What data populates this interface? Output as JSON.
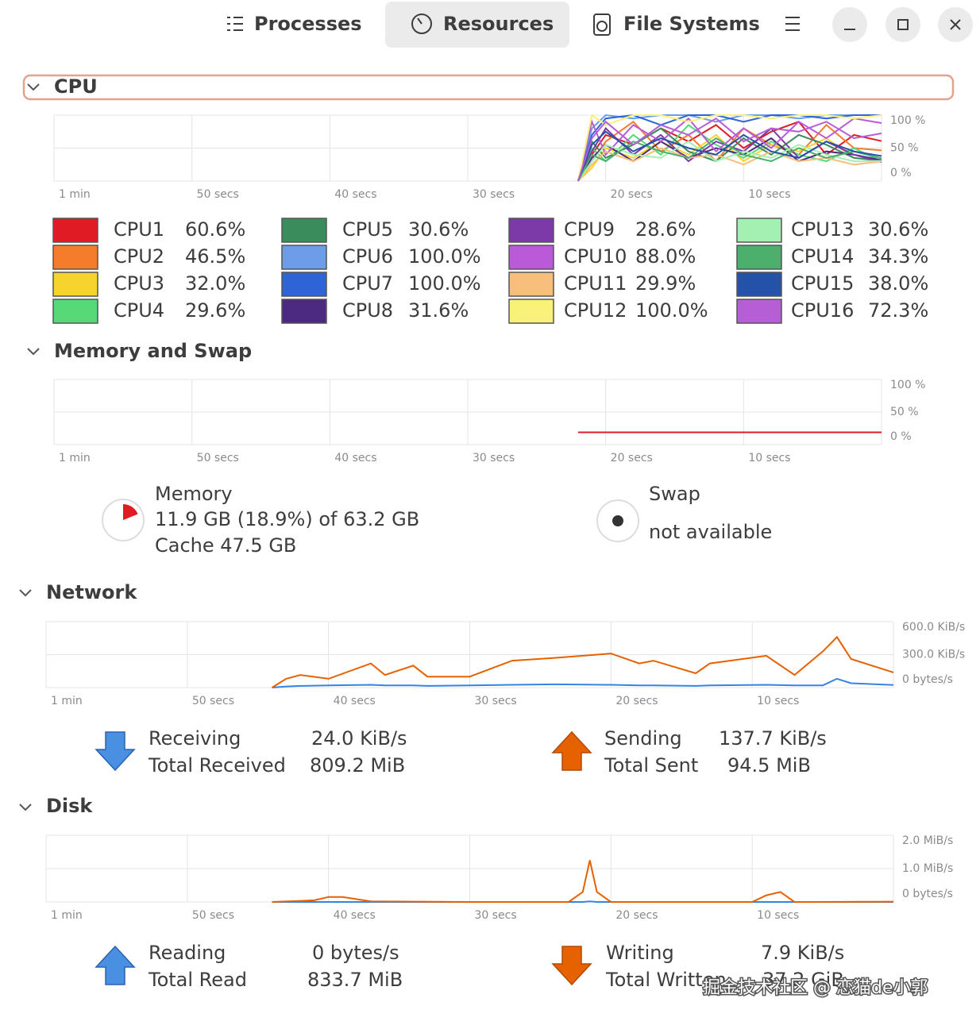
{
  "header": {
    "tabs": [
      "Processes",
      "Resources",
      "File Systems"
    ],
    "active_tab": 1
  },
  "cpu": {
    "title": "CPU",
    "graph": {
      "x": [
        22,
        21,
        20,
        18,
        16,
        14,
        12,
        10,
        8,
        6,
        4,
        2,
        0
      ],
      "xlim": [
        60,
        0
      ],
      "xticks": [
        {
          "value": 60,
          "label": "1 min"
        },
        {
          "value": 50,
          "label": "50 secs"
        },
        {
          "value": 40,
          "label": "40 secs"
        },
        {
          "value": 30,
          "label": "30 secs"
        },
        {
          "value": 20,
          "label": "20 secs"
        },
        {
          "value": 10,
          "label": "10 secs"
        }
      ],
      "ylim": [
        0,
        100
      ],
      "yticks": [
        {
          "value": 100,
          "label": "100 %"
        },
        {
          "value": 50,
          "label": "50 %"
        },
        {
          "value": 0,
          "label": "0 %"
        }
      ],
      "series": [
        {
          "name": "CPU1",
          "color": "#e01b24",
          "value_label": "60.6%",
          "values": [
            0,
            40,
            70,
            55,
            80,
            60,
            85,
            50,
            75,
            90,
            40,
            70,
            60.6
          ]
        },
        {
          "name": "CPU2",
          "color": "#f57c2a",
          "value_label": "46.5%",
          "values": [
            0,
            30,
            60,
            90,
            45,
            70,
            30,
            80,
            55,
            40,
            85,
            50,
            46.5
          ]
        },
        {
          "name": "CPU3",
          "color": "#f6d32d",
          "value_label": "32.0%",
          "values": [
            0,
            20,
            50,
            35,
            60,
            40,
            70,
            30,
            55,
            45,
            65,
            35,
            32
          ]
        },
        {
          "name": "CPU4",
          "color": "#57d977",
          "value_label": "29.6%",
          "values": [
            0,
            50,
            30,
            70,
            40,
            85,
            55,
            35,
            60,
            40,
            30,
            50,
            29.6
          ]
        },
        {
          "name": "CPU5",
          "color": "#3b8c5c",
          "value_label": "30.6%",
          "values": [
            0,
            60,
            35,
            55,
            80,
            45,
            30,
            65,
            40,
            70,
            55,
            35,
            30.6
          ]
        },
        {
          "name": "CPU6",
          "color": "#6d9de8",
          "value_label": "100.0%",
          "values": [
            0,
            80,
            100,
            95,
            100,
            100,
            90,
            100,
            100,
            95,
            100,
            100,
            100
          ]
        },
        {
          "name": "CPU7",
          "color": "#2f64d6",
          "value_label": "100.0%",
          "values": [
            0,
            70,
            95,
            100,
            85,
            100,
            100,
            90,
            100,
            100,
            95,
            100,
            100
          ]
        },
        {
          "name": "CPU8",
          "color": "#4b2a80",
          "value_label": "31.6%",
          "values": [
            0,
            35,
            55,
            30,
            60,
            35,
            50,
            40,
            65,
            30,
            45,
            40,
            31.6
          ]
        },
        {
          "name": "CPU9",
          "color": "#7c3aa8",
          "value_label": "28.6%",
          "values": [
            0,
            45,
            80,
            40,
            70,
            30,
            60,
            45,
            80,
            35,
            60,
            40,
            28.6
          ]
        },
        {
          "name": "CPU10",
          "color": "#bb5ad8",
          "value_label": "88.0%",
          "values": [
            0,
            90,
            40,
            85,
            60,
            95,
            45,
            80,
            50,
            90,
            65,
            95,
            88
          ]
        },
        {
          "name": "CPU11",
          "color": "#f7be7c",
          "value_label": "29.9%",
          "values": [
            0,
            25,
            45,
            30,
            50,
            35,
            40,
            25,
            45,
            30,
            35,
            25,
            29.9
          ]
        },
        {
          "name": "CPU12",
          "color": "#f8f27a",
          "value_label": "100.0%",
          "values": [
            0,
            100,
            85,
            100,
            100,
            90,
            100,
            100,
            95,
            100,
            100,
            95,
            100
          ]
        },
        {
          "name": "CPU13",
          "color": "#a4efb2",
          "value_label": "30.6%",
          "values": [
            0,
            30,
            55,
            40,
            35,
            60,
            30,
            45,
            35,
            55,
            40,
            30,
            30.6
          ]
        },
        {
          "name": "CPU14",
          "color": "#4caf6b",
          "value_label": "34.3%",
          "values": [
            0,
            40,
            30,
            60,
            45,
            35,
            65,
            40,
            30,
            50,
            35,
            45,
            34.3
          ]
        },
        {
          "name": "CPU15",
          "color": "#2452a8",
          "value_label": "38.0%",
          "values": [
            0,
            55,
            75,
            45,
            65,
            50,
            40,
            70,
            45,
            35,
            60,
            45,
            38
          ]
        },
        {
          "name": "CPU16",
          "color": "#b65ed6",
          "value_label": "72.3%",
          "values": [
            0,
            65,
            90,
            55,
            85,
            70,
            95,
            60,
            80,
            75,
            90,
            65,
            72.3
          ]
        }
      ]
    }
  },
  "memory": {
    "title": "Memory and Swap",
    "graph": {
      "x": [
        22,
        0
      ],
      "xlim": [
        60,
        0
      ],
      "xticks": [
        {
          "value": 60,
          "label": "1 min"
        },
        {
          "value": 50,
          "label": "50 secs"
        },
        {
          "value": 40,
          "label": "40 secs"
        },
        {
          "value": 30,
          "label": "30 secs"
        },
        {
          "value": 20,
          "label": "20 secs"
        },
        {
          "value": 10,
          "label": "10 secs"
        }
      ],
      "ylim": [
        0,
        100
      ],
      "yticks": [
        {
          "value": 100,
          "label": "100 %"
        },
        {
          "value": 50,
          "label": "50 %"
        },
        {
          "value": 0,
          "label": "0 %"
        }
      ],
      "series": [
        {
          "color": "#e01b24",
          "values": [
            18.9,
            18.9
          ]
        }
      ]
    },
    "memory_label": "Memory",
    "memory_usage": "11.9 GB (18.9%) of 63.2 GB",
    "memory_percent": 18.9,
    "cache": "Cache 47.5 GB",
    "swap_label": "Swap",
    "swap_status": "not available"
  },
  "network": {
    "title": "Network",
    "graph": {
      "x": [
        44,
        43,
        42,
        40,
        37,
        36,
        34,
        33,
        30,
        27,
        24,
        20,
        18,
        17,
        14,
        13,
        9,
        7,
        5,
        4,
        3,
        0
      ],
      "xlim": [
        60,
        0
      ],
      "xticks": [
        {
          "value": 60,
          "label": "1 min"
        },
        {
          "value": 50,
          "label": "50 secs"
        },
        {
          "value": 40,
          "label": "40 secs"
        },
        {
          "value": 30,
          "label": "30 secs"
        },
        {
          "value": 20,
          "label": "20 secs"
        },
        {
          "value": 10,
          "label": "10 secs"
        }
      ],
      "ylim": [
        0,
        600
      ],
      "yticks": [
        {
          "value": 600,
          "label": "600.0 KiB/s"
        },
        {
          "value": 300,
          "label": "300.0 KiB/s"
        },
        {
          "value": 0,
          "label": "0 bytes/s"
        }
      ],
      "series": [
        {
          "color": "#3584e4",
          "values": [
            0,
            10,
            15,
            20,
            25,
            20,
            20,
            15,
            20,
            25,
            30,
            25,
            20,
            20,
            15,
            20,
            25,
            20,
            20,
            80,
            40,
            24
          ]
        },
        {
          "color": "#e66100",
          "values": [
            0,
            80,
            115,
            80,
            220,
            115,
            200,
            100,
            100,
            245,
            270,
            310,
            220,
            245,
            130,
            220,
            290,
            115,
            330,
            460,
            260,
            138
          ]
        }
      ]
    },
    "receiving": {
      "label": "Receiving",
      "rate": "24.0 KiB/s",
      "total_label": "Total Received",
      "total": "809.2 MiB"
    },
    "sending": {
      "label": "Sending",
      "rate": "137.7 KiB/s",
      "total_label": "Total Sent",
      "total": "94.5 MiB"
    }
  },
  "disk": {
    "title": "Disk",
    "graph": {
      "x": [
        44,
        41,
        40,
        39,
        37,
        30,
        23,
        22,
        21.5,
        21,
        20,
        10,
        9,
        8,
        7,
        0
      ],
      "xlim": [
        60,
        0
      ],
      "xticks": [
        {
          "value": 60,
          "label": "1 min"
        },
        {
          "value": 50,
          "label": "50 secs"
        },
        {
          "value": 40,
          "label": "40 secs"
        },
        {
          "value": 30,
          "label": "30 secs"
        },
        {
          "value": 20,
          "label": "20 secs"
        },
        {
          "value": 10,
          "label": "10 secs"
        }
      ],
      "ylim": [
        0,
        2
      ],
      "yticks": [
        {
          "value": 2,
          "label": "2.0 MiB/s"
        },
        {
          "value": 1,
          "label": "1.0 MiB/s"
        },
        {
          "value": 0,
          "label": "0 bytes/s"
        }
      ],
      "series": [
        {
          "color": "#3584e4",
          "values": [
            0,
            0,
            0,
            0,
            0,
            0,
            0,
            0,
            0.02,
            0,
            0,
            0,
            0,
            0,
            0,
            0
          ]
        },
        {
          "color": "#e66100",
          "values": [
            0,
            0.05,
            0.15,
            0.15,
            0.02,
            0,
            0,
            0.3,
            1.25,
            0.3,
            0,
            0,
            0.2,
            0.3,
            0,
            0.01
          ]
        }
      ]
    },
    "reading": {
      "label": "Reading",
      "rate": "0 bytes/s",
      "total_label": "Total Read",
      "total": "833.7 MiB"
    },
    "writing": {
      "label": "Writing",
      "rate": "7.9 KiB/s",
      "total_label": "Total Written",
      "total": "37.2 GiB"
    }
  },
  "watermark": "掘金技术社区 @ 恋猫de小郭"
}
